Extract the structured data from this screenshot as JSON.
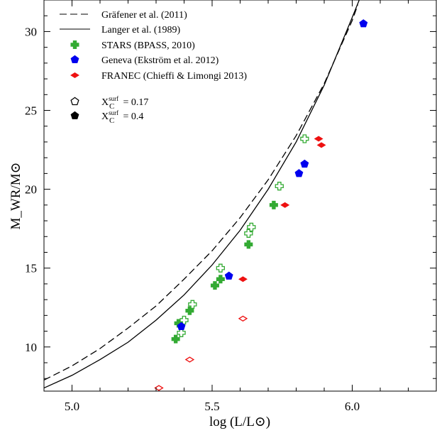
{
  "chart_data": {
    "type": "scatter",
    "xlabel": "log (L/L⊙)",
    "ylabel": "M_WR/M⊙",
    "xlim": [
      4.9,
      6.3
    ],
    "ylim": [
      7.2,
      32
    ],
    "x_ticks": [
      5.0,
      5.5,
      6.0
    ],
    "x_tick_labels": [
      "5.0",
      "5.5",
      "6.0"
    ],
    "y_ticks": [
      10,
      15,
      20,
      25,
      30
    ],
    "y_tick_labels": [
      "10",
      "15",
      "20",
      "25",
      "30"
    ],
    "grid": false,
    "legend_position": "top-left",
    "curves": [
      {
        "name": "Gräfener et al. (2011)",
        "style": "dashed",
        "color": "#000000",
        "x": [
          4.9,
          5.0,
          5.1,
          5.2,
          5.3,
          5.4,
          5.5,
          5.6,
          5.7,
          5.8,
          5.9,
          6.0,
          6.02
        ],
        "y": [
          7.9,
          8.8,
          9.9,
          11.2,
          12.6,
          14.3,
          16.1,
          18.2,
          20.6,
          23.4,
          26.7,
          30.7,
          31.7
        ]
      },
      {
        "name": "Langer et al. (1989)",
        "style": "solid",
        "color": "#000000",
        "x": [
          4.9,
          5.0,
          5.1,
          5.2,
          5.3,
          5.4,
          5.5,
          5.6,
          5.7,
          5.8,
          5.9,
          6.0,
          6.025
        ],
        "y": [
          7.4,
          8.2,
          9.2,
          10.3,
          11.7,
          13.3,
          15.2,
          17.4,
          20.0,
          23.0,
          26.6,
          30.9,
          32.0
        ]
      }
    ],
    "series": [
      {
        "name": "STARS (BPASS, 2010)",
        "color": "#33aa33",
        "marker": "cross",
        "points": [
          {
            "x": 5.37,
            "y": 10.5,
            "filled": true
          },
          {
            "x": 5.38,
            "y": 11.5,
            "filled": true
          },
          {
            "x": 5.42,
            "y": 12.3,
            "filled": true
          },
          {
            "x": 5.51,
            "y": 13.9,
            "filled": true
          },
          {
            "x": 5.53,
            "y": 14.3,
            "filled": true
          },
          {
            "x": 5.63,
            "y": 16.5,
            "filled": true
          },
          {
            "x": 5.72,
            "y": 19.0,
            "filled": true
          },
          {
            "x": 5.39,
            "y": 10.9,
            "filled": false
          },
          {
            "x": 5.4,
            "y": 11.7,
            "filled": false
          },
          {
            "x": 5.43,
            "y": 12.7,
            "filled": false
          },
          {
            "x": 5.53,
            "y": 15.0,
            "filled": false
          },
          {
            "x": 5.63,
            "y": 17.2,
            "filled": false
          },
          {
            "x": 5.64,
            "y": 17.6,
            "filled": false
          },
          {
            "x": 5.74,
            "y": 20.2,
            "filled": false
          },
          {
            "x": 5.83,
            "y": 23.2,
            "filled": false
          }
        ]
      },
      {
        "name": "Geneva (Ekström et al. 2012)",
        "color": "#0000ee",
        "marker": "pentagon",
        "points": [
          {
            "x": 5.39,
            "y": 11.3,
            "filled": true
          },
          {
            "x": 5.56,
            "y": 14.5,
            "filled": true
          },
          {
            "x": 5.81,
            "y": 21.0,
            "filled": true
          },
          {
            "x": 5.83,
            "y": 21.6,
            "filled": true
          },
          {
            "x": 6.04,
            "y": 30.5,
            "filled": true
          }
        ]
      },
      {
        "name": "FRANEC (Chieffi & Limongi 2013)",
        "color": "#ee1111",
        "marker": "diamond",
        "points": [
          {
            "x": 5.61,
            "y": 14.3,
            "filled": true
          },
          {
            "x": 5.76,
            "y": 19.0,
            "filled": true
          },
          {
            "x": 5.88,
            "y": 23.2,
            "filled": true
          },
          {
            "x": 5.89,
            "y": 22.8,
            "filled": true
          },
          {
            "x": 5.31,
            "y": 7.4,
            "filled": false
          },
          {
            "x": 5.42,
            "y": 9.2,
            "filled": false
          },
          {
            "x": 5.61,
            "y": 11.8,
            "filled": false
          }
        ]
      }
    ],
    "legend": {
      "entries": [
        {
          "label": "Gräfener et al. (2011)",
          "kind": "line",
          "style": "dashed",
          "color": "#000000"
        },
        {
          "label": "Langer et al. (1989)",
          "kind": "line",
          "style": "solid",
          "color": "#000000"
        },
        {
          "label": "STARS (BPASS, 2010)",
          "kind": "marker",
          "marker": "cross",
          "color": "#33aa33"
        },
        {
          "label": "Geneva (Ekström et al. 2012)",
          "kind": "marker",
          "marker": "pentagon",
          "color": "#0000ee"
        },
        {
          "label": "FRANEC (Chieffi & Limongi 2013)",
          "kind": "marker",
          "marker": "diamond",
          "color": "#ee1111"
        }
      ],
      "fill_entries": [
        {
          "label_prefix": "X",
          "label_sub": "C",
          "label_sup": "surf",
          "label_value": " = 0.17",
          "filled": false
        },
        {
          "label_prefix": "X",
          "label_sub": "C",
          "label_sup": "surf",
          "label_value": " = 0.4",
          "filled": true
        }
      ]
    }
  }
}
